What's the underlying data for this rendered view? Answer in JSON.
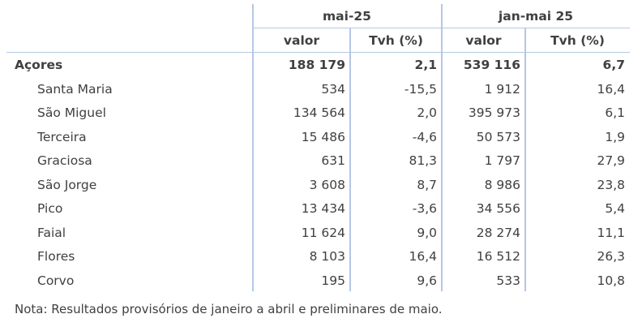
{
  "table": {
    "period_headers": [
      "mai-25",
      "jan-mai 25"
    ],
    "sub_headers": [
      "valor",
      "Tvh (%)",
      "valor",
      "Tvh (%)"
    ],
    "total_row": {
      "name": "Açores",
      "v1": "188 179",
      "t1": "2,1",
      "v2": "539 116",
      "t2": "6,7"
    },
    "rows": [
      {
        "name": "Santa Maria",
        "v1": "534",
        "t1": "-15,5",
        "v2": "1 912",
        "t2": "16,4"
      },
      {
        "name": "São Miguel",
        "v1": "134 564",
        "t1": "2,0",
        "v2": "395 973",
        "t2": "6,1"
      },
      {
        "name": "Terceira",
        "v1": "15 486",
        "t1": "-4,6",
        "v2": "50 573",
        "t2": "1,9"
      },
      {
        "name": "Graciosa",
        "v1": "631",
        "t1": "81,3",
        "v2": "1 797",
        "t2": "27,9"
      },
      {
        "name": "São Jorge",
        "v1": "3 608",
        "t1": "8,7",
        "v2": "8 986",
        "t2": "23,8"
      },
      {
        "name": "Pico",
        "v1": "13 434",
        "t1": "-3,6",
        "v2": "34 556",
        "t2": "5,4"
      },
      {
        "name": "Faial",
        "v1": "11 624",
        "t1": "9,0",
        "v2": "28 274",
        "t2": "11,1"
      },
      {
        "name": "Flores",
        "v1": "8 103",
        "t1": "16,4",
        "v2": "16 512",
        "t2": "26,3"
      },
      {
        "name": "Corvo",
        "v1": "195",
        "t1": "9,6",
        "v2": "533",
        "t2": "10,8"
      }
    ]
  },
  "note": "Nota: Resultados provisórios de janeiro a abril e preliminares de maio.",
  "colors": {
    "grid": "#b4c8e4",
    "text": "#404040"
  }
}
